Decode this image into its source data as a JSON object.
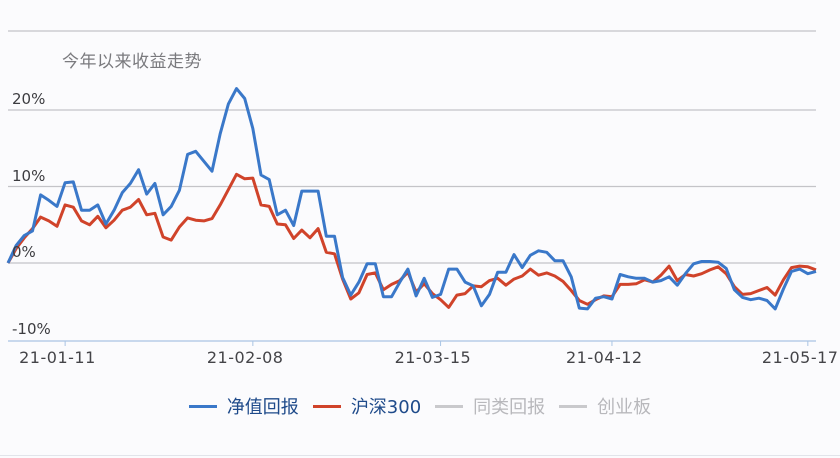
{
  "title": "今年以来收益走势",
  "y_axis": {
    "labels": [
      {
        "text": "20%",
        "value": 20
      },
      {
        "text": "10%",
        "value": 10
      },
      {
        "text": "0%",
        "value": 0
      },
      {
        "text": "-10%",
        "value": -10
      }
    ]
  },
  "x_axis": {
    "labels": [
      {
        "text": "21-01-11",
        "index": 7
      },
      {
        "text": "21-02-08",
        "index": 30
      },
      {
        "text": "21-03-15",
        "index": 53
      },
      {
        "text": "21-04-12",
        "index": 74
      },
      {
        "text": "21-05-17",
        "index": 98
      }
    ]
  },
  "legend": [
    {
      "label": "净值回报",
      "color": "#3a78c9",
      "text_color": "#1e4a8a",
      "active": true
    },
    {
      "label": "沪深300",
      "color": "#d0432a",
      "text_color": "#1e4a8a",
      "active": true
    },
    {
      "label": "同类回报",
      "color": "#c9c9cc",
      "text_color": "#b8b8bc",
      "active": false
    },
    {
      "label": "创业板",
      "color": "#c9c9cc",
      "text_color": "#b8b8bc",
      "active": false
    }
  ],
  "colors": {
    "fund": "#3a78c9",
    "index": "#d0432a",
    "grid": "#c4c4c8",
    "axis": "#a9c4e4"
  },
  "chart_data": {
    "type": "line",
    "title": "今年以来收益走势",
    "xlabel": "",
    "ylabel": "",
    "ylim": [
      -10,
      30
    ],
    "grid": true,
    "legend_position": "bottom",
    "x_tick_labels": [
      "21-01-11",
      "21-02-08",
      "21-03-15",
      "21-04-12",
      "21-05-17"
    ],
    "y_tick_labels": [
      "-10%",
      "0%",
      "10%",
      "20%"
    ],
    "series": [
      {
        "name": "净值回报",
        "color": "#3a78c9",
        "values": [
          0,
          2.3,
          3.6,
          4.2,
          8.9,
          8.2,
          7.4,
          10.5,
          10.6,
          6.9,
          6.9,
          7.6,
          5.1,
          6.9,
          9.2,
          10.4,
          12.2,
          9.0,
          10.4,
          6.3,
          7.4,
          9.5,
          14.2,
          14.6,
          13.3,
          12.0,
          16.9,
          20.8,
          22.8,
          21.5,
          17.6,
          11.5,
          10.9,
          6.3,
          6.9,
          4.9,
          9.4,
          9.4,
          9.4,
          3.5,
          3.5,
          -1.9,
          -4.2,
          -2.5,
          -0.1,
          -0.1,
          -4.4,
          -4.4,
          -2.5,
          -0.8,
          -4.3,
          -2.0,
          -4.5,
          -4.1,
          -0.8,
          -0.8,
          -2.5,
          -3.0,
          -5.6,
          -4.1,
          -1.2,
          -1.2,
          1.1,
          -0.6,
          1.0,
          1.6,
          1.4,
          0.3,
          0.3,
          -1.8,
          -5.9,
          -6.0,
          -4.6,
          -4.4,
          -4.7,
          -1.5,
          -1.8,
          -2.0,
          -2.0,
          -2.5,
          -2.3,
          -1.8,
          -2.9,
          -1.4,
          -0.1,
          0.2,
          0.2,
          0.1,
          -0.7,
          -3.5,
          -4.5,
          -4.8,
          -4.6,
          -4.9,
          -6.0,
          -3.4,
          -1.1,
          -0.8,
          -1.4,
          -1.1
        ]
      },
      {
        "name": "沪深300",
        "color": "#d0432a",
        "values": [
          0,
          1.9,
          3.3,
          4.5,
          6.0,
          5.5,
          4.8,
          7.6,
          7.3,
          5.5,
          5.0,
          6.1,
          4.6,
          5.6,
          6.9,
          7.3,
          8.3,
          6.3,
          6.5,
          3.4,
          3.0,
          4.7,
          5.9,
          5.6,
          5.5,
          5.8,
          7.6,
          9.6,
          11.6,
          11.0,
          11.1,
          7.6,
          7.4,
          5.1,
          5.0,
          3.2,
          4.3,
          3.3,
          4.5,
          1.4,
          1.2,
          -2.1,
          -4.7,
          -3.9,
          -1.5,
          -1.3,
          -3.5,
          -2.8,
          -2.3,
          -1.2,
          -3.8,
          -2.7,
          -4.0,
          -4.8,
          -5.8,
          -4.2,
          -4.0,
          -3.0,
          -3.1,
          -2.3,
          -2.0,
          -2.9,
          -2.1,
          -1.7,
          -0.8,
          -1.6,
          -1.3,
          -1.7,
          -2.4,
          -3.6,
          -4.9,
          -5.4,
          -4.8,
          -4.3,
          -4.4,
          -2.8,
          -2.8,
          -2.7,
          -2.2,
          -2.5,
          -1.6,
          -0.4,
          -2.3,
          -1.5,
          -1.7,
          -1.4,
          -0.9,
          -0.5,
          -1.4,
          -3.1,
          -4.1,
          -4.0,
          -3.6,
          -3.2,
          -4.2,
          -2.2,
          -0.6,
          -0.4,
          -0.5,
          -0.9
        ]
      },
      {
        "name": "同类回报",
        "color": "#c9c9cc",
        "values": [],
        "visible": false
      },
      {
        "name": "创业板",
        "color": "#c9c9cc",
        "values": [],
        "visible": false
      }
    ]
  }
}
